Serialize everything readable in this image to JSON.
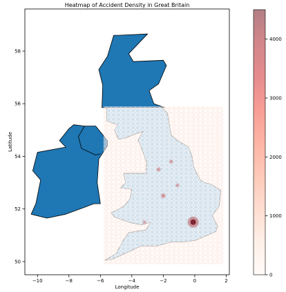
{
  "chart_data": {
    "type": "heatmap",
    "title": "Heatmap of Accident Density in Great Britain",
    "xlabel": "Longitude",
    "ylabel": "Latitude",
    "xlim": [
      -10.8,
      2.2
    ],
    "ylim": [
      49.5,
      59.6
    ],
    "x_ticks": [
      -10,
      -8,
      -6,
      -4,
      -2,
      0,
      2
    ],
    "y_ticks": [
      50,
      52,
      54,
      56,
      58
    ],
    "x_tick_labels": [
      "−10",
      "−8",
      "−6",
      "−4",
      "−2",
      "0",
      "2"
    ],
    "y_tick_labels": [
      "50",
      "52",
      "54",
      "56",
      "58"
    ],
    "colorbar": {
      "colormap": "Reds",
      "alpha": 0.5,
      "range": [
        0,
        4500
      ],
      "ticks": [
        0,
        1000,
        2000,
        3000,
        4000
      ],
      "tick_labels": [
        "0",
        "1000",
        "2000",
        "3000",
        "4000"
      ]
    },
    "hexbin_extent": {
      "lon": [
        -5.8,
        1.8
      ],
      "lat": [
        49.9,
        55.9
      ]
    },
    "hotspots": [
      {
        "lon": -0.1,
        "lat": 51.5,
        "value": 4500
      },
      {
        "lon": -2.0,
        "lat": 52.5,
        "value": 900
      },
      {
        "lon": -2.3,
        "lat": 53.5,
        "value": 500
      },
      {
        "lon": -1.5,
        "lat": 53.8,
        "value": 400
      },
      {
        "lon": -1.1,
        "lat": 52.9,
        "value": 300
      },
      {
        "lon": -3.2,
        "lat": 51.5,
        "value": 250
      }
    ],
    "map_regions": [
      {
        "region": "scotland",
        "fill": "#1f77b4",
        "coords": [
          [
            -5.9,
            55.85
          ],
          [
            -5.85,
            56.7
          ],
          [
            -6.1,
            57.3
          ],
          [
            -5.55,
            57.8
          ],
          [
            -5.15,
            58.6
          ],
          [
            -4.85,
            58.6
          ],
          [
            -3.0,
            58.65
          ],
          [
            -4.2,
            57.9
          ],
          [
            -3.9,
            57.6
          ],
          [
            -2.0,
            57.65
          ],
          [
            -1.8,
            57.45
          ],
          [
            -2.3,
            56.75
          ],
          [
            -2.9,
            56.5
          ],
          [
            -2.6,
            56.0
          ],
          [
            -1.9,
            55.85
          ],
          [
            -3.5,
            55.85
          ],
          [
            -5.9,
            55.85
          ]
        ]
      },
      {
        "region": "ireland",
        "fill": "#1f77b4",
        "coords": [
          [
            -6.0,
            52.2
          ],
          [
            -6.2,
            53.0
          ],
          [
            -6.1,
            53.9
          ],
          [
            -5.55,
            54.4
          ],
          [
            -5.55,
            54.6
          ],
          [
            -6.3,
            55.15
          ],
          [
            -7.0,
            55.15
          ],
          [
            -7.7,
            55.2
          ],
          [
            -8.0,
            55.05
          ],
          [
            -8.6,
            54.6
          ],
          [
            -8.2,
            54.35
          ],
          [
            -10.0,
            54.15
          ],
          [
            -10.3,
            53.45
          ],
          [
            -9.8,
            53.1
          ],
          [
            -10.1,
            52.2
          ],
          [
            -10.4,
            51.8
          ],
          [
            -9.4,
            51.65
          ],
          [
            -8.2,
            51.8
          ],
          [
            -6.4,
            52.2
          ],
          [
            -6.0,
            52.2
          ]
        ]
      },
      {
        "region": "northern-ireland-border",
        "fill": "none",
        "coords": [
          [
            -7.0,
            55.15
          ],
          [
            -7.4,
            54.75
          ],
          [
            -7.2,
            54.3
          ],
          [
            -6.3,
            54.05
          ],
          [
            -6.0,
            54.1
          ]
        ]
      },
      {
        "region": "england-wales",
        "fill": "#1f77b4",
        "coords": [
          [
            -5.6,
            55.85
          ],
          [
            -2.1,
            55.85
          ],
          [
            -1.75,
            55.65
          ],
          [
            -1.5,
            54.8
          ],
          [
            -1.1,
            54.6
          ],
          [
            -0.4,
            54.35
          ],
          [
            -0.2,
            54.05
          ],
          [
            -0.05,
            53.55
          ],
          [
            0.35,
            53.1
          ],
          [
            0.6,
            53.0
          ],
          [
            1.0,
            52.95
          ],
          [
            1.65,
            52.7
          ],
          [
            1.55,
            52.1
          ],
          [
            1.1,
            51.75
          ],
          [
            1.45,
            51.35
          ],
          [
            1.35,
            51.15
          ],
          [
            0.8,
            51.0
          ],
          [
            0.0,
            50.8
          ],
          [
            -0.8,
            50.75
          ],
          [
            -1.5,
            50.75
          ],
          [
            -2.4,
            50.6
          ],
          [
            -3.4,
            50.6
          ],
          [
            -4.3,
            50.35
          ],
          [
            -5.2,
            50.1
          ],
          [
            -5.7,
            50.05
          ],
          [
            -5.0,
            50.3
          ],
          [
            -4.55,
            50.8
          ],
          [
            -4.2,
            51.1
          ],
          [
            -3.1,
            51.2
          ],
          [
            -2.8,
            51.5
          ],
          [
            -3.4,
            51.4
          ],
          [
            -4.2,
            51.5
          ],
          [
            -5.1,
            51.7
          ],
          [
            -5.3,
            51.85
          ],
          [
            -4.5,
            52.1
          ],
          [
            -4.1,
            52.4
          ],
          [
            -4.0,
            52.75
          ],
          [
            -4.7,
            52.8
          ],
          [
            -4.4,
            53.0
          ],
          [
            -4.5,
            53.35
          ],
          [
            -3.1,
            53.35
          ],
          [
            -3.05,
            53.75
          ],
          [
            -3.4,
            54.35
          ],
          [
            -3.6,
            54.6
          ],
          [
            -3.3,
            54.95
          ],
          [
            -3.8,
            54.85
          ],
          [
            -4.4,
            54.7
          ],
          [
            -4.85,
            54.65
          ],
          [
            -5.1,
            55.0
          ],
          [
            -4.9,
            55.2
          ],
          [
            -5.6,
            55.35
          ],
          [
            -5.6,
            55.85
          ]
        ]
      }
    ]
  }
}
